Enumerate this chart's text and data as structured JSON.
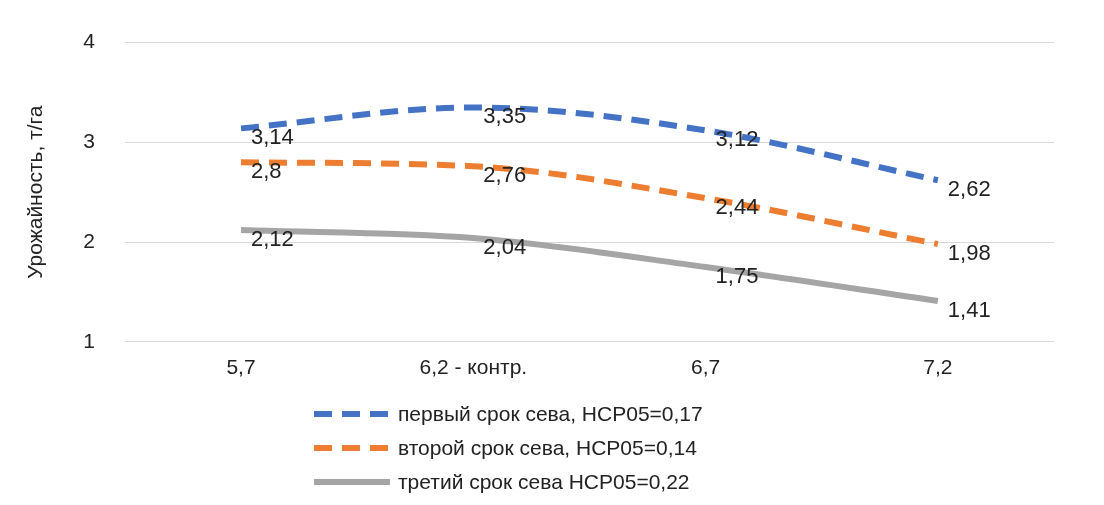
{
  "chart_data": {
    "type": "line",
    "ylabel": "Урожайность, т/га",
    "categories": [
      "5,7",
      "6,2 - контр.",
      "6,7",
      "7,2"
    ],
    "series": [
      {
        "name": "первый срок сева, НСР05=0,17",
        "color": "#4472c4",
        "line_style": "dashed",
        "values": [
          3.14,
          3.35,
          3.12,
          2.62
        ],
        "value_labels": [
          "3,14",
          "3,35",
          "3,12",
          "2,62"
        ]
      },
      {
        "name": "второй срок сева, НСР05=0,14",
        "color": "#ed7d31",
        "line_style": "dashed",
        "values": [
          2.8,
          2.76,
          2.44,
          1.98
        ],
        "value_labels": [
          "2,8",
          "2,76",
          "2,44",
          "1,98"
        ]
      },
      {
        "name": "третий срок сева НСР05=0,22",
        "color": "#a5a5a5",
        "line_style": "solid",
        "values": [
          2.12,
          2.04,
          1.75,
          1.41
        ],
        "value_labels": [
          "2,12",
          "2,04",
          "1,75",
          "1,41"
        ]
      }
    ],
    "ylim": [
      1,
      4
    ],
    "yticks": [
      1,
      2,
      3,
      4
    ],
    "grid": "y",
    "legend": "bottom",
    "marker": "none"
  }
}
